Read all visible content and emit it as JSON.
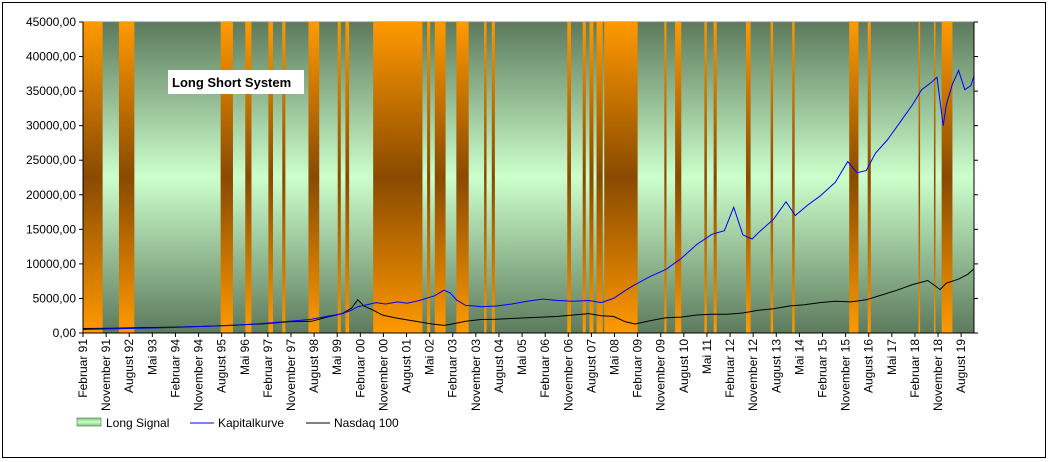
{
  "chart_data": {
    "type": "line",
    "title": "Long Short System",
    "ylim": [
      0,
      45000
    ],
    "y_ticks": [
      "0,00",
      "5000,00",
      "10000,00",
      "15000,00",
      "20000,00",
      "25000,00",
      "30000,00",
      "35000,00",
      "40000,00",
      "45000,00"
    ],
    "x_range": [
      1991.083,
      2020.0
    ],
    "x_ticks": [
      {
        "label": "Februar 91",
        "x": 1991.083
      },
      {
        "label": "November 91",
        "x": 1991.833
      },
      {
        "label": "August 92",
        "x": 1992.583
      },
      {
        "label": "Mai 93",
        "x": 1993.333
      },
      {
        "label": "Februar 94",
        "x": 1994.083
      },
      {
        "label": "November 94",
        "x": 1994.833
      },
      {
        "label": "August 95",
        "x": 1995.583
      },
      {
        "label": "Mai 96",
        "x": 1996.333
      },
      {
        "label": "Februar 97",
        "x": 1997.083
      },
      {
        "label": "November 97",
        "x": 1997.833
      },
      {
        "label": "August 98",
        "x": 1998.583
      },
      {
        "label": "Mai 99",
        "x": 1999.333
      },
      {
        "label": "Februar 00",
        "x": 2000.083
      },
      {
        "label": "November 00",
        "x": 2000.833
      },
      {
        "label": "August 01",
        "x": 2001.583
      },
      {
        "label": "Mai 02",
        "x": 2002.333
      },
      {
        "label": "Februar 03",
        "x": 2003.083
      },
      {
        "label": "November 03",
        "x": 2003.833
      },
      {
        "label": "August 04",
        "x": 2004.583
      },
      {
        "label": "Mai 05",
        "x": 2005.333
      },
      {
        "label": "Februar 06",
        "x": 2006.083
      },
      {
        "label": "November 06",
        "x": 2006.833
      },
      {
        "label": "August 07",
        "x": 2007.583
      },
      {
        "label": "Mai 08",
        "x": 2008.333
      },
      {
        "label": "Februar 09",
        "x": 2009.083
      },
      {
        "label": "November 09",
        "x": 2009.833
      },
      {
        "label": "August 10",
        "x": 2010.583
      },
      {
        "label": "Mai 11",
        "x": 2011.333
      },
      {
        "label": "Februar 12",
        "x": 2012.083
      },
      {
        "label": "November 12",
        "x": 2012.833
      },
      {
        "label": "August 13",
        "x": 2013.583
      },
      {
        "label": "Mai 14",
        "x": 2014.333
      },
      {
        "label": "Februar 15",
        "x": 2015.083
      },
      {
        "label": "November 15",
        "x": 2015.833
      },
      {
        "label": "August 16",
        "x": 2016.583
      },
      {
        "label": "Mai 17",
        "x": 2017.333
      },
      {
        "label": "Februar 18",
        "x": 2018.083
      },
      {
        "label": "November 18",
        "x": 2018.833
      },
      {
        "label": "August 19",
        "x": 2019.583
      }
    ],
    "long_signal_periods": [
      [
        1991.083,
        1991.72
      ],
      [
        1992.25,
        1992.75
      ],
      [
        2008.0,
        2009.083
      ],
      [
        1995.55,
        1995.95
      ],
      [
        1996.35,
        1996.55
      ],
      [
        1997.1,
        1997.25
      ],
      [
        1997.55,
        1997.65
      ],
      [
        1998.4,
        1998.75
      ],
      [
        1999.35,
        1999.45
      ],
      [
        1999.6,
        1999.72
      ],
      [
        2000.5,
        2002.1
      ],
      [
        2001.3,
        2001.33
      ],
      [
        2002.25,
        2002.35
      ],
      [
        2002.5,
        2002.85
      ],
      [
        2003.2,
        2003.6
      ],
      [
        2004.1,
        2004.18
      ],
      [
        2004.35,
        2004.45
      ],
      [
        2006.8,
        2006.92
      ],
      [
        2007.3,
        2007.4
      ],
      [
        2007.52,
        2007.65
      ],
      [
        2007.75,
        2007.95
      ],
      [
        2008.2,
        2008.55
      ],
      [
        2009.95,
        2010.02
      ],
      [
        2010.3,
        2010.5
      ],
      [
        2011.25,
        2011.33
      ],
      [
        2011.55,
        2011.65
      ],
      [
        2012.6,
        2012.75
      ],
      [
        2013.4,
        2013.48
      ],
      [
        2014.1,
        2014.18
      ],
      [
        2015.95,
        2016.25
      ],
      [
        2016.55,
        2016.65
      ],
      [
        2018.2,
        2018.25
      ],
      [
        2018.7,
        2018.75
      ],
      [
        2018.95,
        2019.3
      ]
    ],
    "series": [
      {
        "name": "Kapitalkurve",
        "color": "#0000ff",
        "x": [
          1991.083,
          1992.0,
          1993.0,
          1994.0,
          1995.0,
          1996.0,
          1997.0,
          1997.8,
          1998.5,
          1999.0,
          1999.5,
          1999.8,
          2000.0,
          2000.3,
          2000.6,
          2000.9,
          2001.3,
          2001.6,
          2002.0,
          2002.5,
          2002.8,
          2003.0,
          2003.2,
          2003.5,
          2003.8,
          2004.0,
          2004.5,
          2005.0,
          2005.5,
          2006.0,
          2006.5,
          2007.0,
          2007.5,
          2007.9,
          2008.3,
          2008.7,
          2009.0,
          2009.5,
          2010.0,
          2010.5,
          2011.0,
          2011.5,
          2011.9,
          2012.2,
          2012.5,
          2012.8,
          2013.0,
          2013.5,
          2013.9,
          2014.2,
          2014.6,
          2015.0,
          2015.5,
          2015.9,
          2016.2,
          2016.5,
          2016.8,
          2017.2,
          2017.6,
          2018.0,
          2018.3,
          2018.6,
          2018.8,
          2019.0,
          2019.1,
          2019.3,
          2019.5,
          2019.7,
          2019.9,
          2020.0
        ],
        "values": [
          500,
          600,
          700,
          800,
          950,
          1100,
          1400,
          1700,
          2000,
          2400,
          2800,
          3300,
          3800,
          4100,
          4400,
          4200,
          4500,
          4300,
          4700,
          5400,
          6200,
          5800,
          4800,
          4000,
          3900,
          3800,
          3900,
          4200,
          4600,
          4900,
          4700,
          4600,
          4700,
          4400,
          5000,
          6200,
          7000,
          8200,
          9200,
          10800,
          12800,
          14300,
          14800,
          18200,
          14200,
          13600,
          14500,
          16500,
          19000,
          17000,
          18500,
          19800,
          21800,
          24800,
          23200,
          23500,
          26000,
          28000,
          30500,
          33000,
          35200,
          36200,
          37000,
          30000,
          33000,
          36000,
          38000,
          35200,
          35800,
          37200
        ]
      },
      {
        "name": "Nasdaq 100",
        "color": "#000000",
        "x": [
          1991.083,
          1992.0,
          1993.0,
          1994.0,
          1995.0,
          1996.0,
          1997.0,
          1997.8,
          1998.5,
          1999.0,
          1999.5,
          1999.8,
          2000.0,
          2000.2,
          2000.5,
          2000.8,
          2001.2,
          2001.6,
          2002.0,
          2002.4,
          2002.8,
          2003.0,
          2003.5,
          2004.0,
          2004.5,
          2005.0,
          2005.5,
          2006.0,
          2006.5,
          2007.0,
          2007.5,
          2007.9,
          2008.3,
          2008.7,
          2009.0,
          2009.5,
          2010.0,
          2010.5,
          2011.0,
          2011.5,
          2012.0,
          2012.5,
          2013.0,
          2013.5,
          2014.0,
          2014.5,
          2015.0,
          2015.5,
          2016.0,
          2016.5,
          2017.0,
          2017.5,
          2018.0,
          2018.5,
          2018.9,
          2019.1,
          2019.5,
          2019.8,
          2020.0
        ],
        "values": [
          650,
          700,
          780,
          860,
          950,
          1150,
          1350,
          1650,
          1700,
          2300,
          2800,
          3600,
          4800,
          3900,
          3300,
          2600,
          2200,
          1900,
          1600,
          1300,
          1100,
          1250,
          1700,
          1950,
          2000,
          2100,
          2200,
          2300,
          2400,
          2600,
          2800,
          2500,
          2400,
          1600,
          1300,
          1800,
          2200,
          2300,
          2600,
          2700,
          2700,
          2900,
          3300,
          3500,
          3900,
          4100,
          4400,
          4600,
          4500,
          4800,
          5500,
          6200,
          7000,
          7600,
          6300,
          7200,
          7800,
          8500,
          9300
        ]
      }
    ],
    "legend": {
      "position": "bottom-left",
      "items": [
        "Long Signal",
        "Kapitalkurve",
        "Nasdaq 100"
      ]
    }
  }
}
